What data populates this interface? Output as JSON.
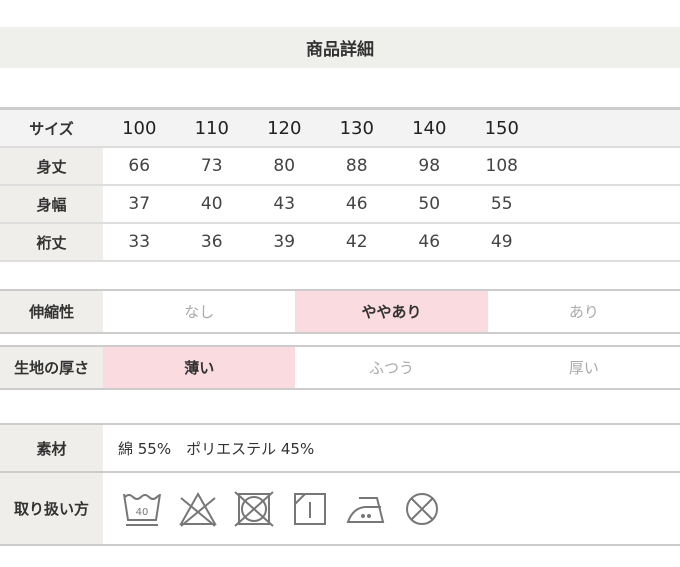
{
  "title": "商品詳細",
  "size_table": {
    "header_label": "サイズ",
    "sizes": [
      "100",
      "110",
      "120",
      "130",
      "140",
      "150"
    ],
    "rows": [
      {
        "label": "身丈",
        "values": [
          "66",
          "73",
          "80",
          "88",
          "98",
          "108"
        ]
      },
      {
        "label": "身幅",
        "values": [
          "37",
          "40",
          "43",
          "46",
          "50",
          "55"
        ]
      },
      {
        "label": "裄丈",
        "values": [
          "33",
          "36",
          "39",
          "42",
          "46",
          "49"
        ]
      }
    ]
  },
  "stretch": {
    "label": "伸縮性",
    "options": [
      "なし",
      "ややあり",
      "あり"
    ],
    "selected": "ややあり"
  },
  "thickness": {
    "label": "生地の厚さ",
    "options": [
      "薄い",
      "ふつう",
      "厚い"
    ],
    "selected": "薄い"
  },
  "material": {
    "label": "素材",
    "value": "綿 55%　ポリエステル 45%"
  },
  "care": {
    "label": "取り扱い方",
    "wash_temp": "40",
    "icons": [
      "wash-40-icon",
      "no-bleach-icon",
      "no-tumble-dry-icon",
      "drip-dry-shade-icon",
      "iron-medium-icon",
      "no-dry-clean-icon"
    ]
  },
  "colors": {
    "highlight": "#fadbe0",
    "label_bg": "#efeeea"
  }
}
